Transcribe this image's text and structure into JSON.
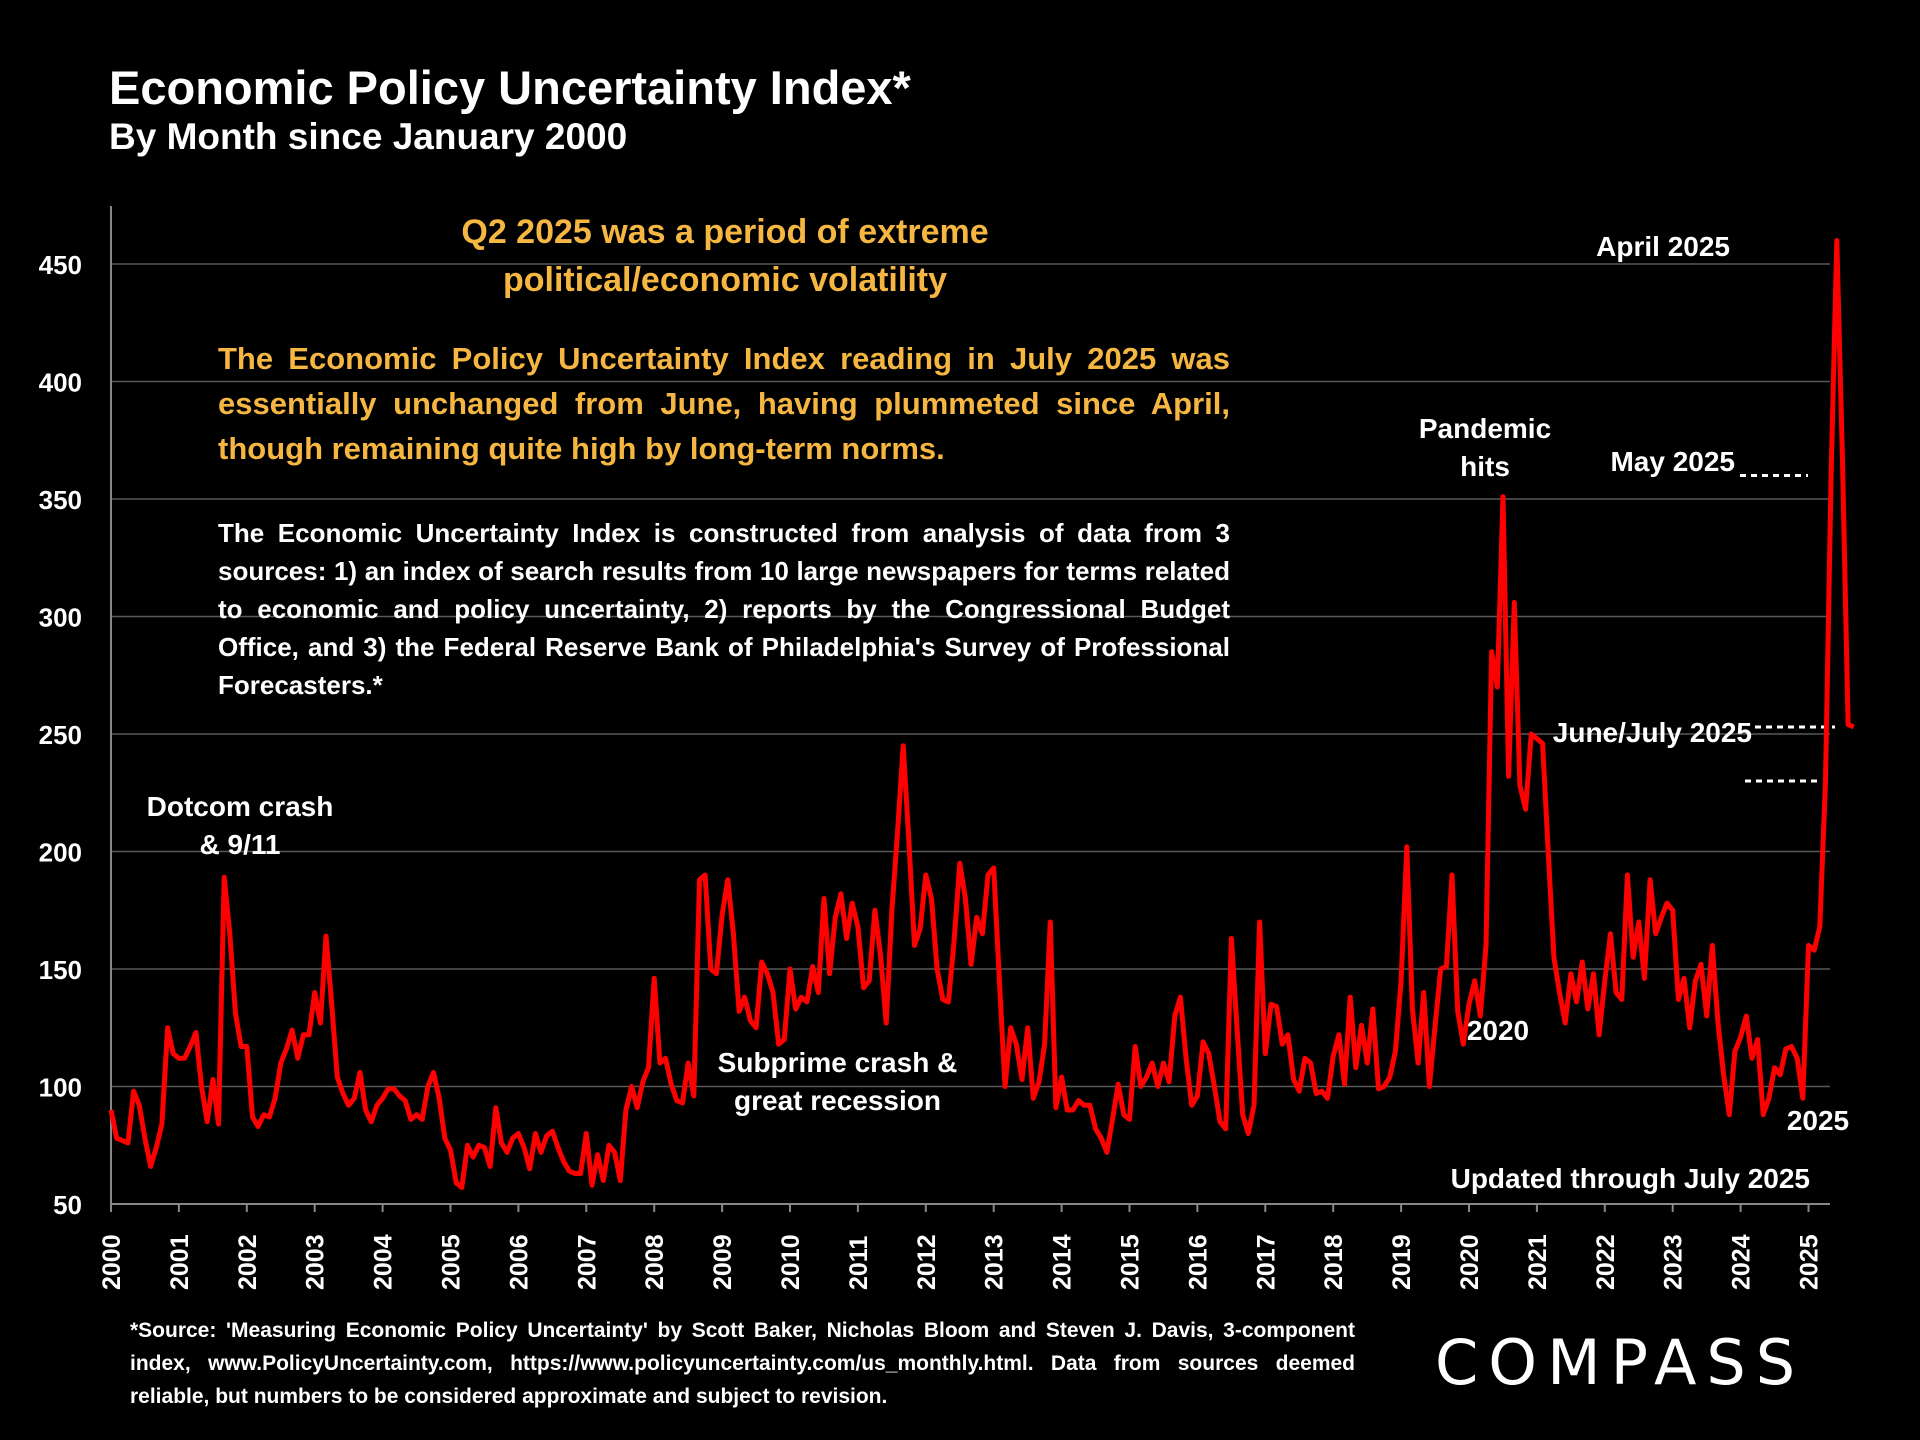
{
  "header": {
    "title": "Economic Policy Uncertainty Index*",
    "subtitle": "By Month since January 2000"
  },
  "annotations": {
    "headline": "Q2 2025 was a period of extreme political/economic volatility",
    "summary": "The Economic Policy Uncertainty Index reading in July 2025 was essentially unchanged from June, having plummeted since April, though remaining quite high by long-term norms.",
    "description": "The Economic Uncertainty Index is constructed from analysis of data from 3 sources:  1) an index of search results from 10 large newspapers for terms related to economic and policy uncertainty, 2) reports by the Congressional Budget Office, and 3) the Federal Reserve Bank of Philadelphia's Survey of Professional Forecasters.*",
    "dotcom_line1": "Dotcom crash",
    "dotcom_line2": "& 9/11",
    "subprime_line1": "Subprime crash &",
    "subprime_line2": "great recession",
    "pandemic_line1": "Pandemic",
    "pandemic_line2": "hits",
    "label_2020": "2020",
    "label_2025": "2025",
    "april": "April 2025",
    "may": "May 2025",
    "junejuly": "June/July 2025",
    "updated": "Updated through July 2025"
  },
  "footer": {
    "source": "*Source: 'Measuring Economic Policy Uncertainty' by Scott Baker, Nicholas Bloom and Steven J. Davis, 3-component  index,  www.PolicyUncertainty.com,  https://www.policyuncertainty.com/us_monthly.html. Data from sources deemed reliable, but numbers to be considered approximate and subject to revision.",
    "logo": "COMPASS"
  },
  "colors": {
    "background": "#000000",
    "line": "#ff0000",
    "accent_text": "#f5b642",
    "gridline": "#595959",
    "text": "#ffffff"
  },
  "chart_data": {
    "type": "line",
    "title": "Economic Policy Uncertainty Index*",
    "xlabel": "",
    "ylabel": "",
    "ylim": [
      50,
      470
    ],
    "yticks": [
      50,
      100,
      150,
      200,
      250,
      300,
      350,
      400,
      450
    ],
    "x_tick_labels": [
      "2000",
      "2001",
      "2002",
      "2003",
      "2004",
      "2005",
      "2006",
      "2007",
      "2008",
      "2009",
      "2010",
      "2011",
      "2012",
      "2013",
      "2014",
      "2015",
      "2016",
      "2017",
      "2018",
      "2019",
      "2020",
      "2021",
      "2022",
      "2023",
      "2024",
      "2025"
    ],
    "grid": true,
    "series": [
      {
        "name": "",
        "x_start": "2000-01",
        "frequency": "monthly",
        "values": [
          90,
          78,
          77,
          76,
          98,
          92,
          78,
          66,
          74,
          84,
          125,
          114,
          112,
          112,
          117,
          123,
          100,
          85,
          103,
          84,
          189,
          165,
          131,
          117,
          117,
          87,
          83,
          88,
          87,
          95,
          110,
          116,
          124,
          112,
          122,
          122,
          140,
          127,
          164,
          135,
          104,
          97,
          92,
          95,
          106,
          90,
          85,
          92,
          95,
          99,
          99,
          96,
          94,
          86,
          88,
          86,
          100,
          106,
          95,
          78,
          73,
          59,
          57,
          75,
          70,
          75,
          74,
          66,
          91,
          76,
          72,
          78,
          80,
          74,
          65,
          80,
          72,
          79,
          81,
          74,
          68,
          64,
          63,
          63,
          80,
          58,
          71,
          60,
          75,
          72,
          60,
          90,
          100,
          91,
          102,
          108,
          146,
          110,
          112,
          101,
          94,
          93,
          110,
          96,
          188,
          190,
          150,
          148,
          173,
          188,
          165,
          132,
          138,
          128,
          125,
          153,
          148,
          140,
          118,
          120,
          150,
          133,
          138,
          136,
          151,
          140,
          180,
          148,
          172,
          182,
          163,
          178,
          168,
          142,
          145,
          175,
          156,
          127,
          175,
          208,
          245,
          205,
          160,
          167,
          190,
          180,
          150,
          137,
          136,
          162,
          195,
          180,
          152,
          172,
          165,
          190,
          193,
          145,
          100,
          125,
          118,
          103,
          125,
          95,
          102,
          118,
          170,
          91,
          104,
          90,
          90,
          94,
          92,
          92,
          82,
          78,
          72,
          86,
          101,
          88,
          86,
          117,
          100,
          104,
          110,
          100,
          110,
          102,
          130,
          138,
          112,
          92,
          96,
          119,
          114,
          100,
          85,
          82,
          163,
          125,
          88,
          80,
          92,
          170,
          114,
          135,
          134,
          118,
          122,
          103,
          98,
          112,
          110,
          97,
          98,
          95,
          113,
          122,
          101,
          138,
          108,
          126,
          110,
          133,
          99,
          100,
          104,
          115,
          145,
          202,
          133,
          110,
          140,
          100,
          126,
          150,
          151,
          190,
          132,
          118,
          135,
          145,
          130,
          160,
          285,
          270,
          351,
          232,
          306,
          228,
          218,
          250,
          248,
          246,
          200,
          155,
          140,
          127,
          148,
          136,
          153,
          133,
          148,
          122,
          145,
          165,
          140,
          137,
          190,
          155,
          170,
          146,
          188,
          165,
          172,
          178,
          175,
          137,
          146,
          125,
          145,
          152,
          130,
          160,
          127,
          105,
          88,
          115,
          121,
          130,
          112,
          120,
          88,
          95,
          108,
          105,
          116,
          117,
          112,
          95,
          160,
          158,
          168,
          230,
          360,
          460,
          366,
          254,
          253
        ]
      }
    ]
  }
}
